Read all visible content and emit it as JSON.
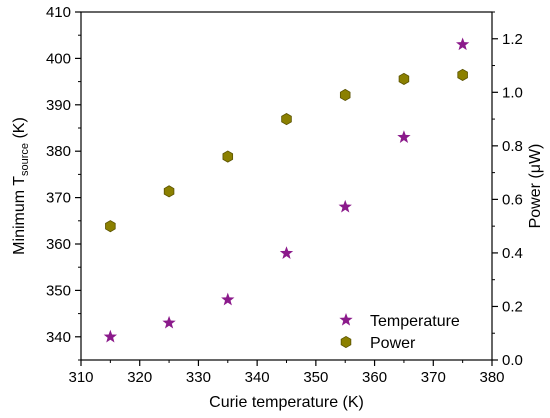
{
  "chart_data": {
    "type": "scatter",
    "xlabel": "Curie temperature (K)",
    "ylabel_left": {
      "main": "Minimum T",
      "subscript": "source",
      "suffix": " (K)"
    },
    "ylabel_right": "Power (μW)",
    "xlim": [
      310,
      380
    ],
    "ylim_left": [
      335,
      410
    ],
    "ylim_right": [
      0.0,
      1.3
    ],
    "x_ticks": [
      310,
      320,
      330,
      340,
      350,
      360,
      370,
      380
    ],
    "y_left_ticks": [
      340,
      350,
      360,
      370,
      380,
      390,
      400,
      410
    ],
    "y_right_ticks": [
      "0.0",
      "0.2",
      "0.4",
      "0.6",
      "0.8",
      "1.0",
      "1.2"
    ],
    "series": [
      {
        "name": "Temperature",
        "axis": "left",
        "marker": "star",
        "color": "#8B1A8B",
        "x": [
          315,
          325,
          335,
          345,
          355,
          365,
          375
        ],
        "y": [
          340,
          343,
          348,
          358,
          368,
          383,
          403
        ]
      },
      {
        "name": "Power",
        "axis": "right",
        "marker": "hexagon",
        "color": "#8B8000",
        "x": [
          315,
          325,
          335,
          345,
          355,
          365,
          375
        ],
        "y": [
          0.5,
          0.63,
          0.76,
          0.9,
          0.99,
          1.05,
          1.065
        ]
      }
    ],
    "legend": {
      "placement": "bottom-right",
      "entries": [
        "Temperature",
        "Power"
      ]
    },
    "grid": false
  }
}
